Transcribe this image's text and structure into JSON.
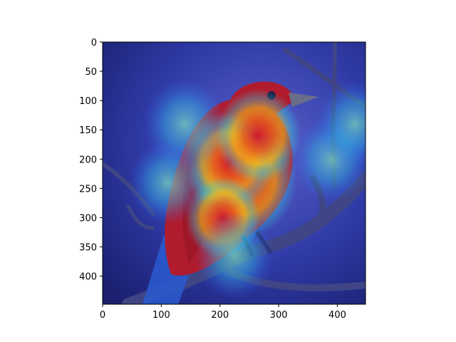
{
  "chart_data": {
    "type": "heatmap",
    "description_kind": "image with saliency heatmap overlay",
    "image_subject": "bird",
    "colormap": "jet",
    "x_ticks": [
      "0",
      "100",
      "200",
      "300",
      "400"
    ],
    "y_ticks": [
      "0",
      "50",
      "100",
      "150",
      "200",
      "250",
      "300",
      "350",
      "400"
    ],
    "xlim": [
      0,
      448
    ],
    "ylim": [
      448,
      0
    ],
    "grid": false,
    "legend": "none",
    "hotspots": [
      {
        "x": 240,
        "y": 235,
        "intensity": 1.0
      },
      {
        "x": 215,
        "y": 205,
        "intensity": 0.85
      },
      {
        "x": 265,
        "y": 160,
        "intensity": 0.8
      },
      {
        "x": 205,
        "y": 300,
        "intensity": 0.7
      },
      {
        "x": 140,
        "y": 140,
        "intensity": 0.45
      },
      {
        "x": 390,
        "y": 200,
        "intensity": 0.35
      },
      {
        "x": 430,
        "y": 140,
        "intensity": 0.35
      },
      {
        "x": 110,
        "y": 240,
        "intensity": 0.3
      },
      {
        "x": 225,
        "y": 365,
        "intensity": 0.35
      }
    ],
    "colors": {
      "background_dark": "#1a1f6e",
      "background_mid": "#2f3aa6",
      "bird_red": "#b01c2e",
      "bird_orange": "#d9481b",
      "bird_yellow": "#e0b418",
      "bird_blue_tail": "#2a5bd0",
      "branch": "#4a4f8a",
      "hot": "#d4142a",
      "warm": "#f5a623",
      "cyan": "#33d6e0"
    }
  }
}
